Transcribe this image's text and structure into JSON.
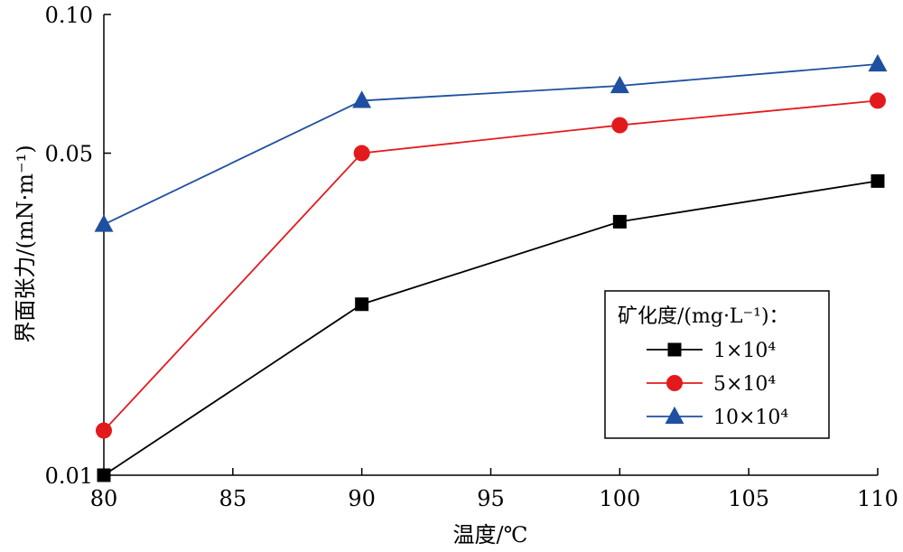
{
  "chart_data": {
    "type": "line",
    "x": [
      80,
      90,
      100,
      110
    ],
    "series": [
      {
        "name": "1×10⁴",
        "color": "#000000",
        "marker": "square",
        "values": [
          0.01,
          0.0235,
          0.0355,
          0.0435
        ]
      },
      {
        "name": "5×10⁴",
        "color": "#e31a1c",
        "marker": "circle",
        "values": [
          0.0125,
          0.05,
          0.0575,
          0.065
        ]
      },
      {
        "name": "10×10⁴",
        "color": "#1f4fa0",
        "marker": "triangle",
        "values": [
          0.035,
          0.065,
          0.07,
          0.078
        ]
      }
    ],
    "xlabel": "温度/℃",
    "ylabel": "界面张力/(mN·m⁻¹)",
    "xlim": [
      80,
      110
    ],
    "x_ticks": [
      80,
      85,
      90,
      95,
      100,
      105,
      110
    ],
    "x_tick_labels": [
      "80",
      "85",
      "90",
      "95",
      "100",
      "105",
      "110"
    ],
    "y_scale": "log",
    "ylim": [
      0.01,
      0.1
    ],
    "y_ticks": [
      0.01,
      0.05,
      0.1
    ],
    "y_tick_labels": [
      "0.01",
      "0.05",
      "0.10"
    ],
    "grid": false,
    "legend": {
      "title": "矿化度/(mg·L⁻¹)：",
      "position": "lower-right"
    }
  }
}
